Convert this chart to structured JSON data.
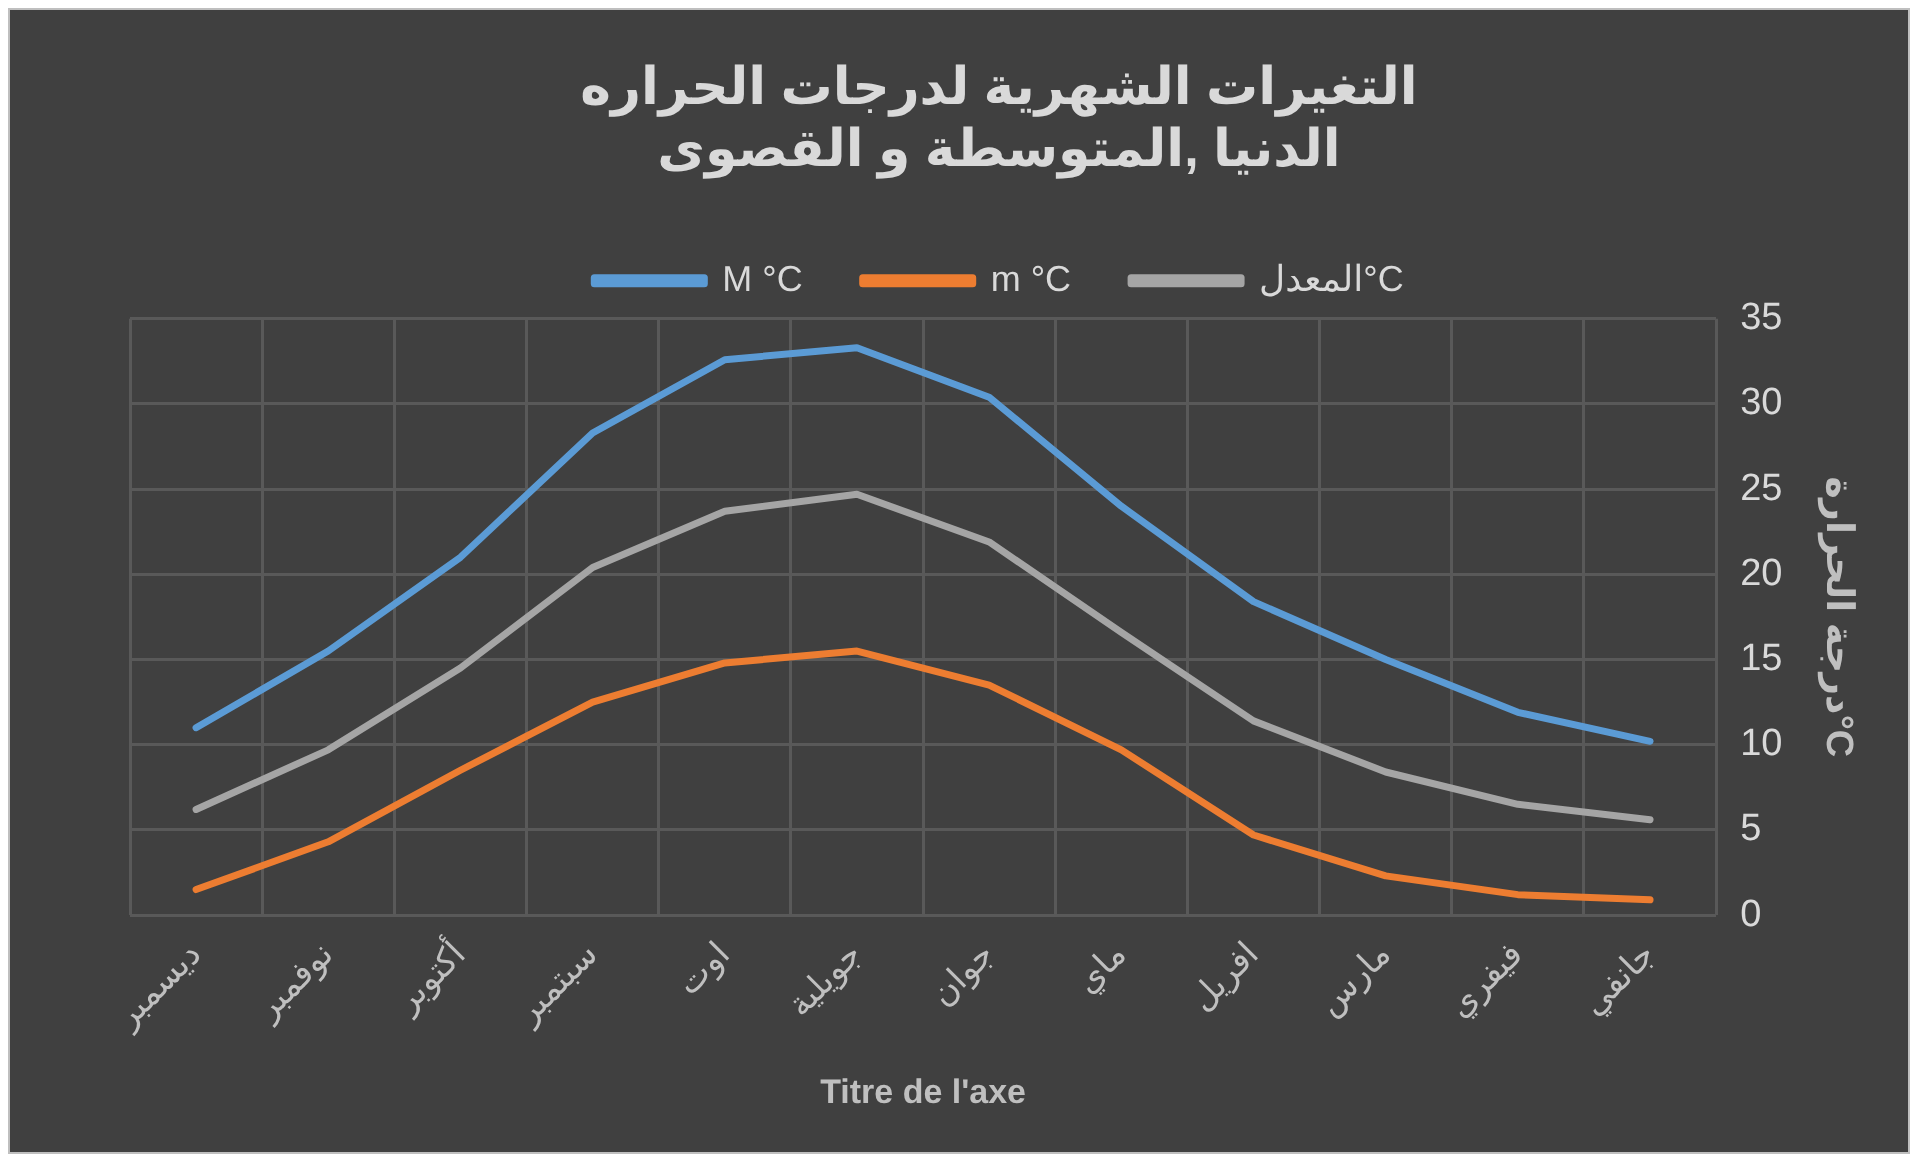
{
  "chart_data": {
    "type": "line",
    "title": "التغيرات الشهرية لدرجات الحراره\nالدنيا ,المتوسطة و القصوى",
    "xlabel": "Titre de l'axe",
    "ylabel": "درجة الحرارة°C",
    "categories": [
      "ديسمبر",
      "نوفمبر",
      "أكتوبر",
      "سبتمبر",
      "اوت",
      "جويلية",
      "جوان",
      "ماي",
      "افريل",
      "مارس",
      "فيفري",
      "جانفي"
    ],
    "series": [
      {
        "name": "M °C",
        "color": "#5b9bd5",
        "values": [
          11,
          15.5,
          21,
          28.3,
          32.6,
          33.3,
          30.4,
          24,
          18.4,
          15,
          11.9,
          10.2
        ]
      },
      {
        "name": "m °C",
        "color": "#ed7d31",
        "values": [
          1.5,
          4.3,
          8.5,
          12.5,
          14.8,
          15.5,
          13.5,
          9.7,
          4.7,
          2.3,
          1.2,
          0.9
        ]
      },
      {
        "name": "المعدل°C",
        "color": "#a5a5a5",
        "values": [
          6.2,
          9.7,
          14.5,
          20.4,
          23.7,
          24.7,
          21.9,
          16.6,
          11.4,
          8.4,
          6.5,
          5.6
        ]
      }
    ],
    "ylim": [
      0,
      35
    ],
    "yticks": [
      0,
      5,
      10,
      15,
      20,
      25,
      30,
      35
    ],
    "grid": true,
    "legend": "top",
    "marker": "none",
    "line_style": "solid"
  }
}
